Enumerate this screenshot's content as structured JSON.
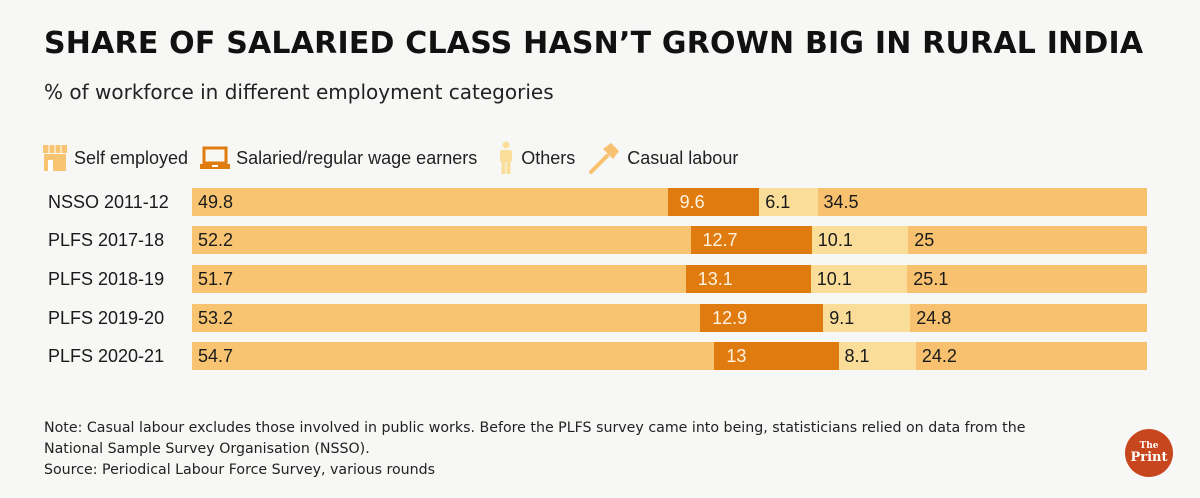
{
  "header": {
    "title": "SHARE OF SALARIED CLASS HASN’T GROWN BIG IN RURAL INDIA",
    "subtitle": "% of workforce in different employment categories"
  },
  "legend": [
    {
      "label": "Self employed",
      "icon": "shop-icon",
      "color": "#f8c471"
    },
    {
      "label": "Salaried/regular wage earners",
      "icon": "laptop-icon",
      "color": "#e07b10"
    },
    {
      "label": "Others",
      "icon": "person-icon",
      "color": "#fbdd9a"
    },
    {
      "label": "Casual labour",
      "icon": "hammer-icon",
      "color": "#f7bf68"
    }
  ],
  "chart_data": {
    "type": "bar",
    "orientation": "horizontal-stacked-100",
    "title": "SHARE OF SALARIED CLASS HASN’T GROWN BIG IN RURAL INDIA",
    "subtitle": "% of workforce in different employment categories",
    "xlabel": "",
    "ylabel": "",
    "xlim": [
      0,
      100
    ],
    "grid": false,
    "legend_position": "top-left",
    "categories": [
      "NSSO 2011-12",
      "PLFS 2017-18",
      "PLFS 2018-19",
      "PLFS 2019-20",
      "PLFS 2020-21"
    ],
    "series": [
      {
        "name": "Self employed",
        "color": "#f8c471",
        "values": [
          49.8,
          52.2,
          51.7,
          53.2,
          54.7
        ],
        "labels": [
          "49.8",
          "52.2",
          "51.7",
          "53.2",
          "54.7"
        ]
      },
      {
        "name": "Salaried/regular wage earners",
        "color": "#e07b10",
        "values": [
          9.6,
          12.7,
          13.1,
          12.9,
          13
        ],
        "labels": [
          "9.6",
          "12.7",
          "13.1",
          "12.9",
          "13"
        ]
      },
      {
        "name": "Others",
        "color": "#fbdd9a",
        "values": [
          6.1,
          10.1,
          10.1,
          9.1,
          8.1
        ],
        "labels": [
          "6.1",
          "10.1",
          "10.1",
          "9.1",
          "8.1"
        ]
      },
      {
        "name": "Casual labour",
        "color": "#f7c170",
        "values": [
          34.5,
          25,
          25.1,
          24.8,
          24.2
        ],
        "labels": [
          "34.5",
          "25",
          "25.1",
          "24.8",
          "24.2"
        ]
      }
    ]
  },
  "footer": {
    "note": "Note: Casual labour excludes those involved in public works. Before the PLFS survey came into being, statisticians relied on data from the National Sample Survey Organisation (NSSO).",
    "source": "Source: Periodical Labour Force Survey, various rounds",
    "logo_line1": "The",
    "logo_line2": "Print"
  }
}
